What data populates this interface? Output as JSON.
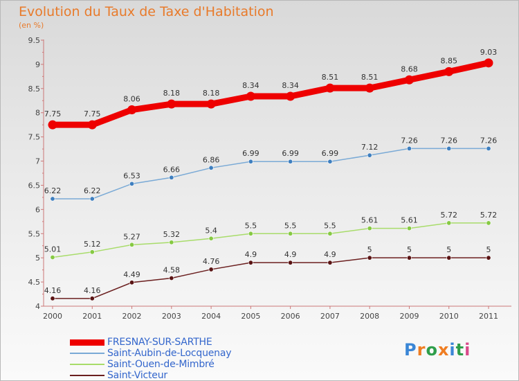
{
  "title": "Evolution du Taux de Taxe d'Habitation",
  "unit": "(en %)",
  "logo": {
    "letters": [
      "P",
      "r",
      "o",
      "x",
      "i",
      "t",
      "i"
    ],
    "colors": [
      "#3a86d6",
      "#ef7d22",
      "#2e9e4a",
      "#ef7d22",
      "#3a86d6",
      "#2e9e4a",
      "#d94a8a"
    ]
  },
  "chart_data": {
    "type": "line",
    "title": "Evolution du Taux de Taxe d'Habitation",
    "ylabel": "(en %)",
    "xlabel": "",
    "x": [
      "2000",
      "2001",
      "2002",
      "2003",
      "2004",
      "2005",
      "2006",
      "2007",
      "2008",
      "2009",
      "2010",
      "2011"
    ],
    "ylim": [
      4,
      9.5
    ],
    "yticks": [
      "4",
      "4.5",
      "5",
      "5.5",
      "6",
      "6.5",
      "7",
      "7.5",
      "8",
      "8.5",
      "9",
      "9.5"
    ],
    "grid": false,
    "legend_position": "bottom-left",
    "series": [
      {
        "name": "FRESNAY-SUR-SARTHE",
        "values": [
          7.75,
          7.75,
          8.06,
          8.18,
          8.18,
          8.34,
          8.34,
          8.51,
          8.51,
          8.68,
          8.85,
          9.03
        ],
        "labels": [
          "7.75",
          "7.75",
          "8.06",
          "8.18",
          "8.18",
          "8.34",
          "8.34",
          "8.51",
          "8.51",
          "8.68",
          "8.85",
          "9.03"
        ],
        "color": "#ee0000",
        "emphasis": true
      },
      {
        "name": "Saint-Aubin-de-Locquenay",
        "values": [
          6.22,
          6.22,
          6.53,
          6.66,
          6.86,
          6.99,
          6.99,
          6.99,
          7.12,
          7.26,
          7.26,
          7.26
        ],
        "labels": [
          "6.22",
          "6.22",
          "6.53",
          "6.66",
          "6.86",
          "6.99",
          "6.99",
          "6.99",
          "7.12",
          "7.26",
          "7.26",
          "7.26"
        ],
        "color": "#7aaad6",
        "marker": "#3f7fbf"
      },
      {
        "name": "Saint-Ouen-de-Mimbré",
        "values": [
          5.01,
          5.12,
          5.27,
          5.32,
          5.4,
          5.5,
          5.5,
          5.5,
          5.61,
          5.61,
          5.72,
          5.72
        ],
        "labels": [
          "5.01",
          "5.12",
          "5.27",
          "5.32",
          "5.4",
          "5.5",
          "5.5",
          "5.5",
          "5.61",
          "5.61",
          "5.72",
          "5.72"
        ],
        "color": "#a8dc6a",
        "marker": "#86c943"
      },
      {
        "name": "Saint-Victeur",
        "values": [
          4.16,
          4.16,
          4.49,
          4.58,
          4.76,
          4.9,
          4.9,
          4.9,
          5,
          5,
          5,
          5
        ],
        "labels": [
          "4.16",
          "4.16",
          "4.49",
          "4.58",
          "4.76",
          "4.9",
          "4.9",
          "4.9",
          "5",
          "5",
          "5",
          "5"
        ],
        "color": "#6b1f1f",
        "marker": "#5a1414"
      }
    ]
  }
}
